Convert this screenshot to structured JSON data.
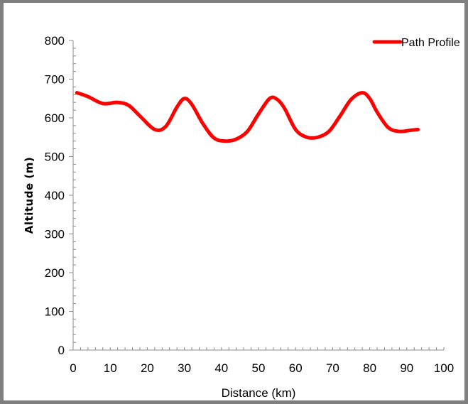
{
  "chart_data": {
    "type": "line",
    "title": "",
    "xlabel": "Distance (km)",
    "ylabel": "Altitude (m)",
    "xlim": [
      0,
      100
    ],
    "ylim": [
      0,
      800
    ],
    "x_ticks": [
      0,
      10,
      20,
      30,
      40,
      50,
      60,
      70,
      80,
      90,
      100
    ],
    "y_ticks": [
      0,
      100,
      200,
      300,
      400,
      500,
      600,
      700,
      800
    ],
    "grid": false,
    "legend_position": "top-right",
    "series": [
      {
        "name": "Path Profile",
        "color": "#ff0000",
        "x": [
          1,
          4,
          8,
          12,
          15,
          18,
          22,
          25,
          28,
          30,
          32,
          35,
          38,
          41,
          44,
          47,
          50,
          53,
          55,
          57,
          60,
          63,
          66,
          69,
          72,
          75,
          78,
          80,
          82,
          85,
          88,
          91,
          93
        ],
        "y": [
          665,
          655,
          637,
          640,
          632,
          605,
          570,
          578,
          628,
          650,
          635,
          585,
          548,
          540,
          545,
          565,
          610,
          650,
          648,
          625,
          570,
          550,
          550,
          565,
          605,
          648,
          665,
          650,
          615,
          575,
          565,
          568,
          570
        ]
      }
    ]
  }
}
